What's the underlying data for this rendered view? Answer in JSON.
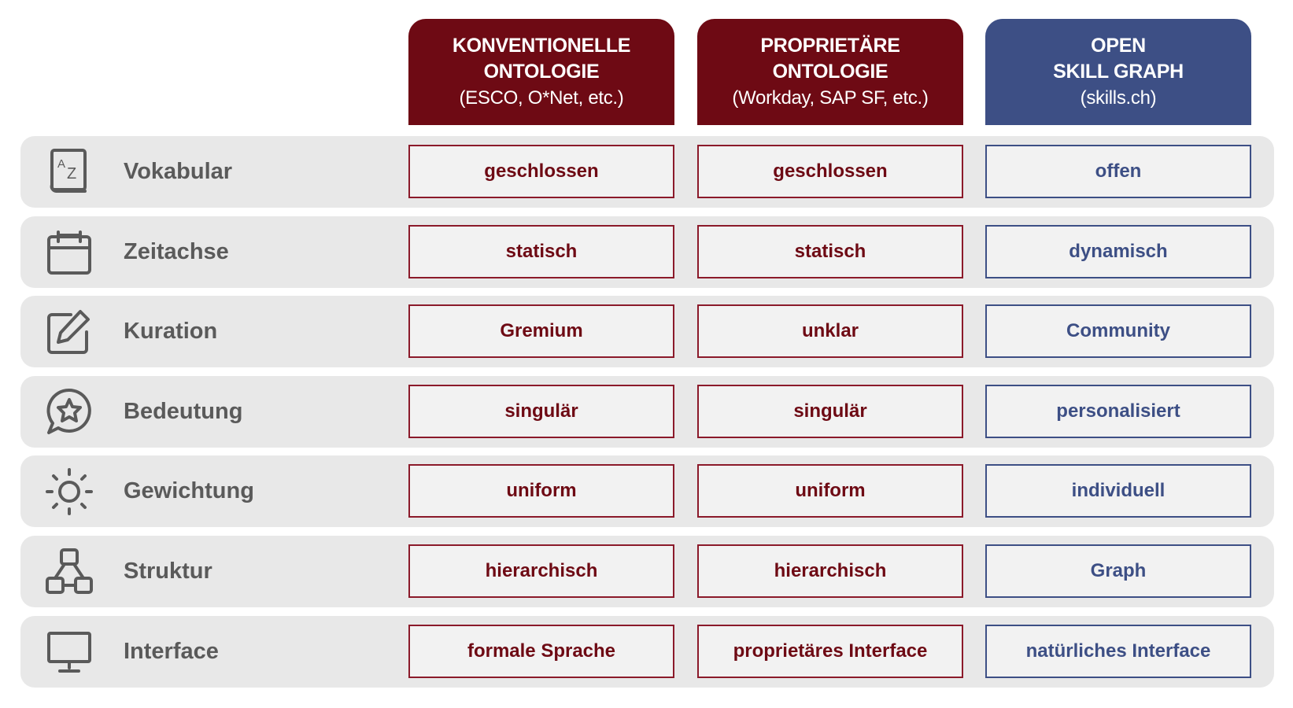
{
  "colors": {
    "conventional": "#6e0a14",
    "proprietary": "#6e0a14",
    "open": "#3d4f85",
    "row_bg": "#e8e8e8",
    "label_text": "#5a5a5a"
  },
  "columns": [
    {
      "line1": "KONVENTIONELLE",
      "line2": "ONTOLOGIE",
      "line3": "(ESCO, O*Net, etc.)"
    },
    {
      "line1": "PROPRIETÄRE",
      "line2": "ONTOLOGIE",
      "line3": "(Workday, SAP SF, etc.)"
    },
    {
      "line1": "OPEN",
      "line2": "SKILL GRAPH",
      "line3": "(skills.ch)"
    }
  ],
  "rows": [
    {
      "label": "Vokabular",
      "icon": "book-az-icon",
      "values": [
        "geschlossen",
        "geschlossen",
        "offen"
      ]
    },
    {
      "label": "Zeitachse",
      "icon": "calendar-icon",
      "values": [
        "statisch",
        "statisch",
        "dynamisch"
      ]
    },
    {
      "label": "Kuration",
      "icon": "edit-icon",
      "values": [
        "Gremium",
        "unklar",
        "Community"
      ]
    },
    {
      "label": "Bedeutung",
      "icon": "chat-star-icon",
      "values": [
        "singulär",
        "singulär",
        "personalisiert"
      ]
    },
    {
      "label": "Gewichtung",
      "icon": "sun-icon",
      "values": [
        "uniform",
        "uniform",
        "individuell"
      ]
    },
    {
      "label": "Struktur",
      "icon": "hierarchy-icon",
      "values": [
        "hierarchisch",
        "hierarchisch",
        "Graph"
      ]
    },
    {
      "label": "Interface",
      "icon": "monitor-icon",
      "values": [
        "formale Sprache",
        "proprietäres Interface",
        "natürliches Interface"
      ]
    }
  ]
}
